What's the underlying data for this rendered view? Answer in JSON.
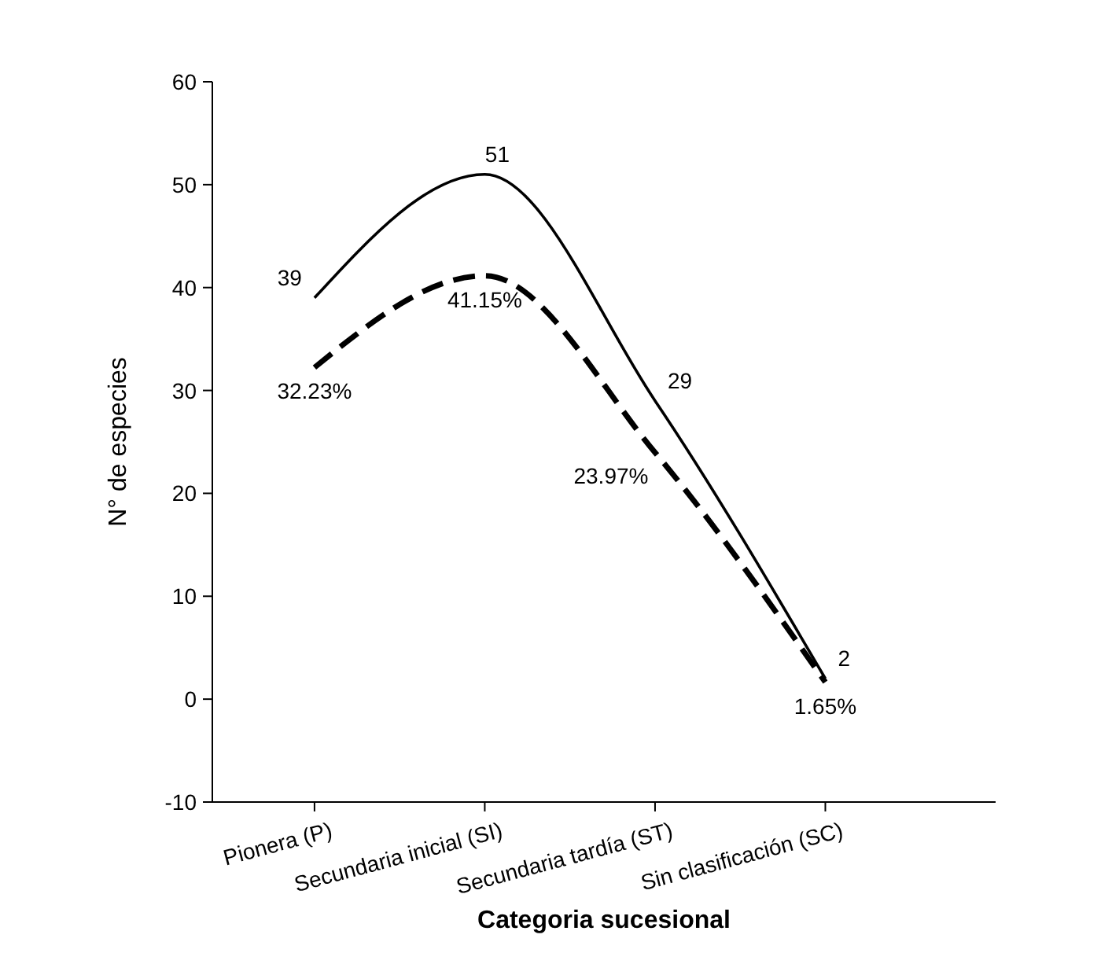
{
  "chart_data": {
    "type": "line",
    "xlabel": "Categoria sucesional",
    "ylabel": "N° de especies",
    "categories": [
      "Pionera (P)",
      "Secundaria inicial (SI)",
      "Secundaria tardía (ST)",
      "Sin clasificación (SC)"
    ],
    "ylim": [
      -10,
      60
    ],
    "yticks": [
      -10,
      0,
      10,
      20,
      30,
      40,
      50,
      60
    ],
    "grid": false,
    "marker": "none",
    "series": [
      {
        "color": "#000000",
        "line_style": "solid",
        "values": [
          39,
          51,
          29,
          2
        ],
        "value_labels": [
          "39",
          "51",
          "29",
          "2"
        ]
      },
      {
        "color": "#000000",
        "line_style": "dashed",
        "values": [
          32.23,
          41.15,
          23.97,
          1.65
        ],
        "value_labels": [
          "32.23%",
          "41.15%",
          "23.97%",
          "1.65%"
        ]
      }
    ]
  }
}
